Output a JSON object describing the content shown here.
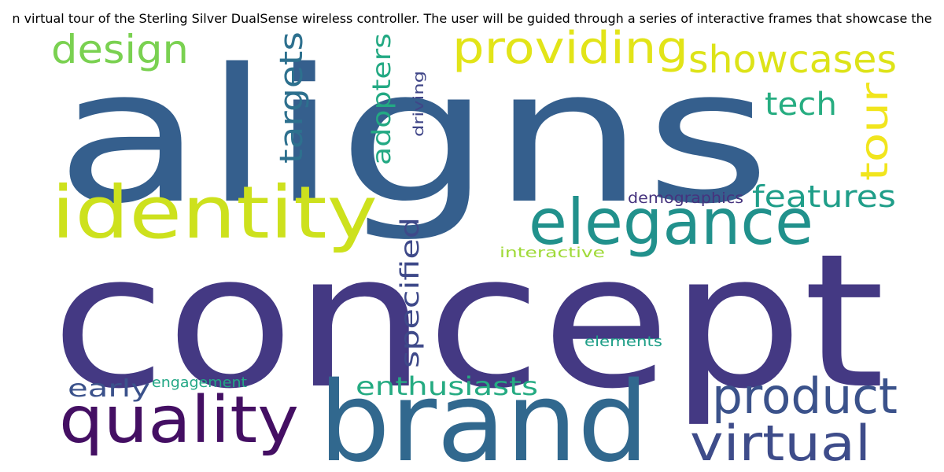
{
  "caption": "n virtual tour of the Sterling Silver DualSense wireless controller. The user will be guided through a series of interactive frames that showcase the",
  "words": {
    "aligns": {
      "text": "aligns",
      "color": "#355f8d"
    },
    "concept": {
      "text": "concept",
      "color": "#443983"
    },
    "brand": {
      "text": "brand",
      "color": "#31688e"
    },
    "identity": {
      "text": "identity",
      "color": "#cde11d"
    },
    "elegance": {
      "text": "elegance",
      "color": "#21918c"
    },
    "quality": {
      "text": "quality",
      "color": "#440f63"
    },
    "product": {
      "text": "product",
      "color": "#3b528b"
    },
    "virtual": {
      "text": "virtual",
      "color": "#3e4c8a"
    },
    "providing": {
      "text": "providing",
      "color": "#e2e418"
    },
    "showcases": {
      "text": "showcases",
      "color": "#dde318"
    },
    "design": {
      "text": "design",
      "color": "#7ad151"
    },
    "tour": {
      "text": "tour",
      "color": "#f1e51d"
    },
    "tech": {
      "text": "tech",
      "color": "#27ad81"
    },
    "features": {
      "text": "features",
      "color": "#1f9e89"
    },
    "targets": {
      "text": "targets",
      "color": "#2d708e"
    },
    "adopters": {
      "text": "adopters",
      "color": "#23a983"
    },
    "specified": {
      "text": "specified",
      "color": "#3e4989"
    },
    "enthusiasts": {
      "text": "enthusiasts",
      "color": "#25ab82"
    },
    "early": {
      "text": "early",
      "color": "#3b528b"
    },
    "engagement": {
      "text": "engagement",
      "color": "#22a785"
    },
    "demographics": {
      "text": "demographics",
      "color": "#46337e"
    },
    "interactive": {
      "text": "interactive",
      "color": "#a0da39"
    },
    "elements": {
      "text": "elements",
      "color": "#1f9f88"
    },
    "driving": {
      "text": "driving",
      "color": "#404688"
    }
  }
}
